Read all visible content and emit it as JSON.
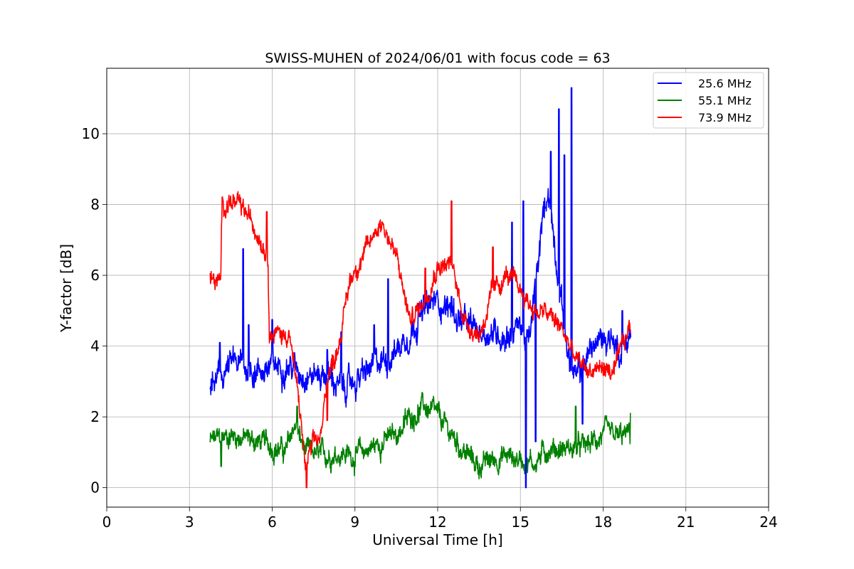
{
  "chart_data": {
    "type": "line",
    "title": "SWISS-MUHEN of 2024/06/01 with focus code = 63",
    "xlabel": "Universal Time [h]",
    "ylabel": "Y-factor [dB]",
    "xlim": [
      0,
      24
    ],
    "ylim": [
      -0.55,
      11.85
    ],
    "xticks": [
      "0",
      "3",
      "6",
      "9",
      "12",
      "15",
      "18",
      "21",
      "24"
    ],
    "yticks": [
      "0",
      "2",
      "4",
      "6",
      "8",
      "10"
    ],
    "grid": true,
    "legend_position": "top-right",
    "series": [
      {
        "name": "25.6 MHz",
        "color": "#0000ff",
        "noise": 0.35,
        "x": [
          3.75,
          4.0,
          4.3,
          4.6,
          5.0,
          5.5,
          6.0,
          6.5,
          7.0,
          7.5,
          8.0,
          8.5,
          9.0,
          9.5,
          10.0,
          10.5,
          11.0,
          11.5,
          12.0,
          12.5,
          13.0,
          13.5,
          14.0,
          14.5,
          15.0,
          15.3,
          15.6,
          15.8,
          16.0,
          16.3,
          16.6,
          16.8,
          17.0,
          17.3,
          17.6,
          18.0,
          18.3,
          18.6,
          19.0
        ],
        "y": [
          2.8,
          3.0,
          3.3,
          3.5,
          3.4,
          3.3,
          3.4,
          3.5,
          3.3,
          3.2,
          3.2,
          2.8,
          3.0,
          3.3,
          3.6,
          3.9,
          4.4,
          5.0,
          5.3,
          5.0,
          4.6,
          4.4,
          4.4,
          4.3,
          4.6,
          4.0,
          6.0,
          7.5,
          8.5,
          6.5,
          4.5,
          3.5,
          3.0,
          3.5,
          4.0,
          4.2,
          4.3,
          3.8,
          4.4
        ]
      },
      {
        "name": "55.1 MHz",
        "color": "#008000",
        "noise": 0.28,
        "x": [
          3.75,
          4.5,
          5.5,
          6.0,
          6.5,
          6.8,
          7.2,
          7.8,
          8.5,
          9.0,
          9.5,
          10.0,
          10.5,
          11.0,
          11.5,
          12.0,
          12.5,
          13.0,
          13.5,
          14.0,
          14.5,
          15.0,
          15.5,
          16.0,
          16.5,
          17.0,
          17.5,
          18.0,
          18.5,
          19.0
        ],
        "y": [
          1.3,
          1.5,
          1.3,
          1.2,
          1.0,
          1.8,
          1.0,
          0.9,
          1.0,
          0.9,
          1.1,
          1.3,
          1.5,
          2.0,
          2.3,
          2.0,
          1.5,
          1.0,
          0.6,
          0.8,
          0.9,
          0.8,
          0.7,
          1.1,
          1.1,
          1.1,
          1.2,
          1.5,
          1.4,
          1.5
        ]
      },
      {
        "name": "73.9 MHz",
        "color": "#ff0000",
        "noise": 0.25,
        "x": [
          3.75,
          4.0,
          4.13,
          4.18,
          4.5,
          5.0,
          5.5,
          5.85,
          5.9,
          6.5,
          6.6,
          7.0,
          7.2,
          7.5,
          7.8,
          8.0,
          8.2,
          8.5,
          8.8,
          9.0,
          9.5,
          9.8,
          10.0,
          10.5,
          11.0,
          11.5,
          12.0,
          12.5,
          13.0,
          13.5,
          14.0,
          14.5,
          15.0,
          15.5,
          16.0,
          16.5,
          17.0,
          17.5,
          18.0,
          18.4,
          18.7,
          19.0
        ],
        "y": [
          5.9,
          5.8,
          5.7,
          8.0,
          8.1,
          7.8,
          7.2,
          6.6,
          4.4,
          4.3,
          4.5,
          2.2,
          0.6,
          1.2,
          1.5,
          3.3,
          3.5,
          4.4,
          5.8,
          6.2,
          6.8,
          7.4,
          7.5,
          6.5,
          4.7,
          5.3,
          6.3,
          6.3,
          4.7,
          4.3,
          5.5,
          6.0,
          5.6,
          5.0,
          4.9,
          4.5,
          3.6,
          3.3,
          3.4,
          3.2,
          4.0,
          4.6
        ]
      }
    ],
    "annotations": {
      "spikes": [
        {
          "series": 0,
          "x": 4.1,
          "y": 4.1
        },
        {
          "series": 0,
          "x": 4.95,
          "y": 6.75
        },
        {
          "series": 0,
          "x": 5.15,
          "y": 4.6
        },
        {
          "series": 0,
          "x": 6.0,
          "y": 4.75
        },
        {
          "series": 0,
          "x": 8.0,
          "y": 3.9
        },
        {
          "series": 0,
          "x": 8.5,
          "y": 4.4
        },
        {
          "series": 0,
          "x": 9.7,
          "y": 4.6
        },
        {
          "series": 0,
          "x": 10.2,
          "y": 5.9
        },
        {
          "series": 0,
          "x": 11.3,
          "y": 5.2
        },
        {
          "series": 0,
          "x": 12.5,
          "y": 5.4
        },
        {
          "series": 0,
          "x": 14.7,
          "y": 7.5
        },
        {
          "series": 0,
          "x": 15.1,
          "y": 8.1
        },
        {
          "series": 0,
          "x": 15.9,
          "y": 7.9
        },
        {
          "series": 0,
          "x": 16.1,
          "y": 9.5
        },
        {
          "series": 0,
          "x": 16.4,
          "y": 10.7
        },
        {
          "series": 0,
          "x": 16.6,
          "y": 9.4
        },
        {
          "series": 0,
          "x": 16.85,
          "y": 11.3
        },
        {
          "series": 0,
          "x": 15.2,
          "y": 0.0
        },
        {
          "series": 0,
          "x": 15.55,
          "y": 1.3
        },
        {
          "series": 0,
          "x": 17.25,
          "y": 1.8
        },
        {
          "series": 0,
          "x": 18.7,
          "y": 5.0
        },
        {
          "series": 1,
          "x": 4.15,
          "y": 0.6
        },
        {
          "series": 1,
          "x": 6.9,
          "y": 2.3
        },
        {
          "series": 1,
          "x": 17.0,
          "y": 2.3
        },
        {
          "series": 1,
          "x": 19.0,
          "y": 2.1
        },
        {
          "series": 2,
          "x": 5.8,
          "y": 7.8
        },
        {
          "series": 2,
          "x": 8.0,
          "y": 1.9
        },
        {
          "series": 2,
          "x": 12.5,
          "y": 8.1
        },
        {
          "series": 2,
          "x": 7.25,
          "y": 0.0
        },
        {
          "series": 2,
          "x": 11.55,
          "y": 6.2
        },
        {
          "series": 2,
          "x": 14.0,
          "y": 6.8
        }
      ]
    }
  }
}
